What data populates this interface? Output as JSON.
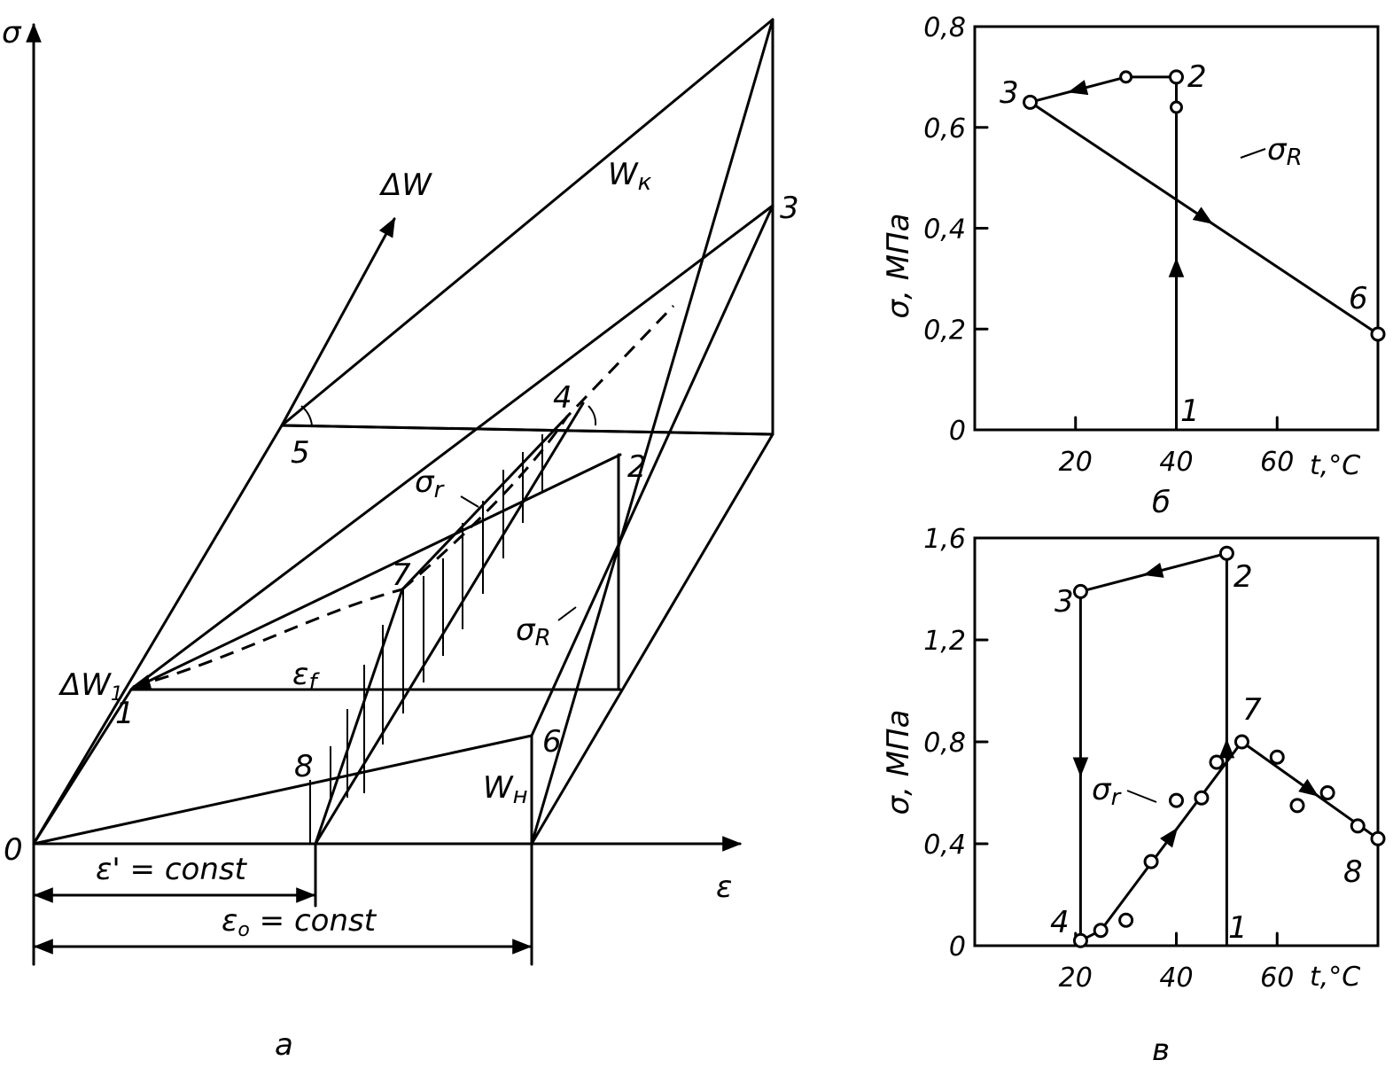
{
  "chart_data": [
    {
      "type": "diagram",
      "panel_label": "а",
      "axis_labels": {
        "y": "σ",
        "x": "ε",
        "origin": "0"
      },
      "point_labels": [
        "1",
        "2",
        "3",
        "4",
        "5",
        "6",
        "7",
        "8"
      ],
      "annotations": {
        "delta_w": "ΔW",
        "delta_w1": "ΔW",
        "delta_w1_sub": "1",
        "w_k": "W",
        "w_k_sub": "к",
        "w_n": "W",
        "w_n_sub": "н",
        "sigma_r_small": "σ",
        "sigma_r_small_sub": "r",
        "sigma_R": "σ",
        "sigma_R_sub": "R",
        "epsilon_f": "ε",
        "epsilon_f_sub": "f",
        "eps_prime": "ε' = const",
        "eps_zero": "ε",
        "eps_zero_sub": "o",
        "eps_zero_tail": " = const"
      }
    },
    {
      "type": "line",
      "panel_label": "б",
      "ylabel": "σ, МПа",
      "xlabel": "t,°C",
      "xlim": [
        0,
        80
      ],
      "ylim": [
        0,
        0.8
      ],
      "xticks": [
        20,
        40,
        60
      ],
      "xtick_labels": [
        "20",
        "40",
        "60"
      ],
      "yticks": [
        0,
        0.2,
        0.4,
        0.6,
        0.8
      ],
      "ytick_labels": [
        "0",
        "0,2",
        "0,4",
        "0,6",
        "0,8"
      ],
      "point_labels": {
        "p1": "1",
        "p2": "2",
        "p3": "3",
        "p6": "6"
      },
      "series_label": "σ",
      "series_label_sub": "R",
      "points": [
        {
          "label": "1",
          "t": 40,
          "sigma": 0
        },
        {
          "label": "",
          "t": 40,
          "sigma": 0.64
        },
        {
          "label": "2",
          "t": 40,
          "sigma": 0.7
        },
        {
          "label": "",
          "t": 30,
          "sigma": 0.7
        },
        {
          "label": "3",
          "t": 11,
          "sigma": 0.65
        },
        {
          "label": "6",
          "t": 80,
          "sigma": 0.19
        }
      ]
    },
    {
      "type": "line",
      "panel_label": "в",
      "ylabel": "σ, МПа",
      "xlabel": "t,°C",
      "xlim": [
        0,
        80
      ],
      "ylim": [
        0,
        1.6
      ],
      "xticks": [
        20,
        40,
        60
      ],
      "xtick_labels": [
        "20",
        "40",
        "60"
      ],
      "yticks": [
        0,
        0.4,
        0.8,
        1.2,
        1.6
      ],
      "ytick_labels": [
        "0",
        "0,4",
        "0,8",
        "1,2",
        "1,6"
      ],
      "point_labels": {
        "p1": "1",
        "p2": "2",
        "p3": "3",
        "p4": "4",
        "p7": "7",
        "p8": "8"
      },
      "series_label": "σ",
      "series_label_sub": "r",
      "path_points": [
        {
          "label": "1",
          "t": 50,
          "sigma": 0
        },
        {
          "label": "2",
          "t": 50,
          "sigma": 1.54
        },
        {
          "label": "3",
          "t": 21,
          "sigma": 1.39
        },
        {
          "label": "4",
          "t": 21,
          "sigma": 0.02
        },
        {
          "label": "",
          "t": 25,
          "sigma": 0.06
        },
        {
          "label": "7",
          "t": 53,
          "sigma": 0.8
        },
        {
          "label": "8",
          "t": 80,
          "sigma": 0.42
        }
      ],
      "scatter_points": [
        {
          "t": 25,
          "sigma": 0.06
        },
        {
          "t": 30,
          "sigma": 0.1
        },
        {
          "t": 35,
          "sigma": 0.33
        },
        {
          "t": 40,
          "sigma": 0.57
        },
        {
          "t": 45,
          "sigma": 0.58
        },
        {
          "t": 48,
          "sigma": 0.72
        },
        {
          "t": 53,
          "sigma": 0.8
        },
        {
          "t": 60,
          "sigma": 0.74
        },
        {
          "t": 64,
          "sigma": 0.55
        },
        {
          "t": 70,
          "sigma": 0.6
        },
        {
          "t": 76,
          "sigma": 0.47
        },
        {
          "t": 80,
          "sigma": 0.42
        }
      ]
    }
  ]
}
